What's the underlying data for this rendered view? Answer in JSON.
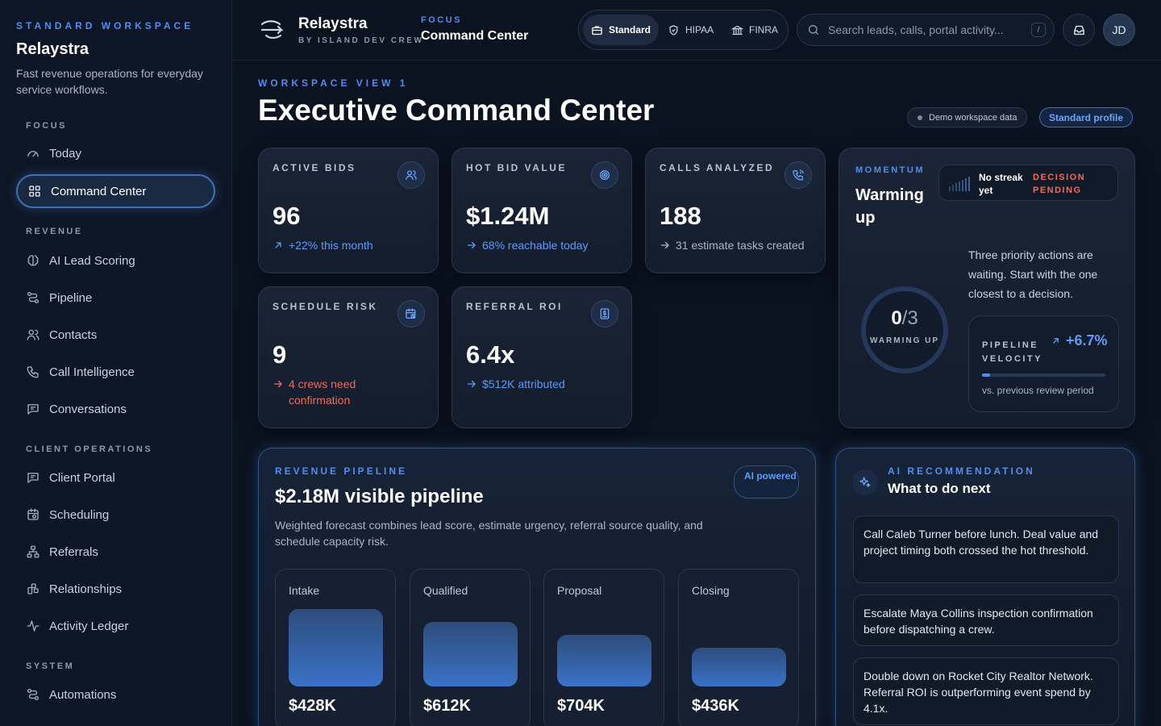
{
  "sidebar": {
    "eyebrow": "STANDARD WORKSPACE",
    "brand": "Relaystra",
    "tagline": "Fast revenue operations for everyday service workflows.",
    "sections": [
      {
        "title": "FOCUS",
        "items": [
          {
            "label": "Today",
            "icon": "gauge-icon"
          },
          {
            "label": "Command Center",
            "icon": "grid-icon",
            "active": true
          }
        ]
      },
      {
        "title": "REVENUE",
        "items": [
          {
            "label": "AI Lead Scoring",
            "icon": "brain-icon"
          },
          {
            "label": "Pipeline",
            "icon": "route-icon"
          },
          {
            "label": "Contacts",
            "icon": "users-icon"
          },
          {
            "label": "Call Intelligence",
            "icon": "phone-icon"
          },
          {
            "label": "Conversations",
            "icon": "message-icon"
          }
        ]
      },
      {
        "title": "CLIENT OPERATIONS",
        "items": [
          {
            "label": "Client Portal",
            "icon": "message-icon"
          },
          {
            "label": "Scheduling",
            "icon": "calendar-icon"
          },
          {
            "label": "Referrals",
            "icon": "network-icon"
          },
          {
            "label": "Relationships",
            "icon": "link-icon"
          },
          {
            "label": "Activity Ledger",
            "icon": "activity-icon"
          }
        ]
      },
      {
        "title": "SYSTEM",
        "items": [
          {
            "label": "Automations",
            "icon": "route-icon"
          }
        ]
      }
    ]
  },
  "topbar": {
    "app_name": "Relaystra",
    "app_sub": "BY ISLAND DEV CREW",
    "focus_label": "FOCUS",
    "focus_value": "Command Center",
    "modes": [
      {
        "label": "Standard",
        "icon": "briefcase-icon",
        "active": true
      },
      {
        "label": "HIPAA",
        "icon": "shield-icon"
      },
      {
        "label": "FINRA",
        "icon": "bank-icon"
      }
    ],
    "search_placeholder": "Search leads, calls, portal activity...",
    "search_shortcut": "/",
    "avatar_initials": "JD"
  },
  "header": {
    "eyebrow": "WORKSPACE VIEW 1",
    "title": "Executive Command Center",
    "demo_pill": "Demo workspace data",
    "profile_pill": "Standard profile"
  },
  "metrics": [
    {
      "label": "ACTIVE BIDS",
      "value": "96",
      "delta": "+22% this month",
      "tone": "blue",
      "arrow": "up-right",
      "icon": "users-icon"
    },
    {
      "label": "HOT BID VALUE",
      "value": "$1.24M",
      "delta": "68% reachable today",
      "tone": "blue",
      "arrow": "right",
      "icon": "target-icon"
    },
    {
      "label": "CALLS ANALYZED",
      "value": "188",
      "delta": "31 estimate tasks created",
      "tone": "grey",
      "arrow": "right",
      "icon": "phone-call-icon"
    },
    {
      "label": "SCHEDULE RISK",
      "value": "9",
      "delta": "4 crews need confirmation",
      "tone": "red",
      "arrow": "right",
      "icon": "calendar-clock-icon"
    },
    {
      "label": "REFERRAL ROI",
      "value": "6.4x",
      "delta": "$512K attributed",
      "tone": "blue",
      "arrow": "right",
      "icon": "dollar-doc-icon"
    }
  ],
  "momentum": {
    "eyebrow": "MOMENTUM",
    "title": "Warming up",
    "streak_text": "No streak yet",
    "streak_status": "DECISION PENDING",
    "description": "Three priority actions are waiting. Start with the one closest to a decision.",
    "done": "0",
    "total": "/3",
    "progress_fraction": 0.0,
    "ring_label": "WARMING UP",
    "velocity_label": "PIPELINE VELOCITY",
    "velocity_value": "+6.7%",
    "velocity_bar_fraction": 0.067,
    "velocity_note": "vs. previous review period"
  },
  "pipeline": {
    "eyebrow": "REVENUE PIPELINE",
    "title": "$2.18M visible pipeline",
    "ai_badge": "AI powered",
    "description": "Weighted forecast combines lead score, estimate urgency, referral source quality, and schedule capacity risk.",
    "stages": [
      {
        "name": "Intake",
        "value": "$428K",
        "amount_k": 428
      },
      {
        "name": "Qualified",
        "value": "$612K",
        "amount_k": 612
      },
      {
        "name": "Proposal",
        "value": "$704K",
        "amount_k": 704
      },
      {
        "name": "Closing",
        "value": "$436K",
        "amount_k": 436
      }
    ]
  },
  "recommendation": {
    "eyebrow": "AI RECOMMENDATION",
    "title": "What to do next",
    "items": [
      "Call Caleb Turner before lunch. Deal value and project timing both crossed the hot threshold.",
      "Escalate Maya Collins inspection confirmation before dispatching a crew.",
      "Double down on Rocket City Realtor Network. Referral ROI is outperforming event spend by 4.1x."
    ]
  },
  "colors": {
    "accent": "#4f8ef0",
    "background": "#0b1220",
    "danger": "#f06a5b"
  }
}
